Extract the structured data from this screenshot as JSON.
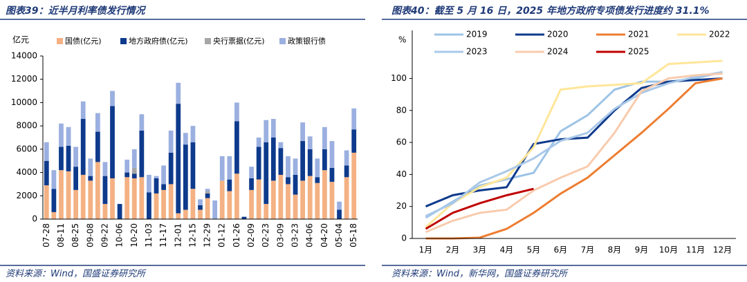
{
  "chart_data": [
    {
      "type": "bar",
      "stacked": true,
      "title": "图表39：近半月利率债发行情况",
      "source": "资料来源：Wind，国盛证券研究所",
      "y_label": "亿元",
      "legend": "top",
      "grid": false,
      "categories": [
        "07-28",
        null,
        "08-11",
        null,
        "08-25",
        null,
        "09-08",
        null,
        "09-22",
        null,
        "10-06",
        null,
        "10-20",
        null,
        "11-03",
        null,
        "11-17",
        null,
        "12-01",
        null,
        "12-15",
        null,
        "12-29",
        null,
        "01-12",
        null,
        "01-26",
        null,
        "02-09",
        null,
        "02-23",
        null,
        "03-09",
        null,
        "03-23",
        null,
        "04-06",
        null,
        "04-20",
        null,
        "05-04",
        null,
        "05-18"
      ],
      "ylim": [
        0,
        14000
      ],
      "yticks": [
        0,
        2000,
        4000,
        6000,
        8000,
        10000,
        12000,
        14000
      ],
      "series": [
        {
          "name": "国债(亿元)",
          "color": "#f4b183",
          "values": [
            2900,
            600,
            4200,
            4100,
            2500,
            3800,
            3300,
            4900,
            1300,
            3500,
            0,
            3600,
            3500,
            3600,
            0,
            2200,
            2500,
            3000,
            500,
            800,
            2600,
            800,
            1800,
            0,
            3300,
            2400,
            3900,
            0,
            2500,
            3400,
            1300,
            3300,
            3800,
            3000,
            2100,
            3300,
            3700,
            3100,
            4200,
            3200,
            0,
            3600,
            5700
          ]
        },
        {
          "name": "地方政府债(亿元)",
          "color": "#0e3a8c",
          "values": [
            2100,
            2000,
            2000,
            2200,
            2000,
            4800,
            400,
            2600,
            2400,
            6200,
            1300,
            400,
            400,
            4000,
            2300,
            1300,
            500,
            2700,
            9400,
            5600,
            4000,
            400,
            400,
            0,
            0,
            1000,
            4500,
            200,
            1000,
            2800,
            5300,
            3700,
            2300,
            600,
            1700,
            3400,
            2300,
            500,
            1800,
            1200,
            800,
            1000,
            2000
          ]
        },
        {
          "name": "央行票据(亿元)",
          "color": "#a6a6a6",
          "values": [
            0,
            0,
            0,
            0,
            0,
            0,
            0,
            0,
            0,
            0,
            0,
            0,
            500,
            0,
            0,
            0,
            0,
            0,
            0,
            0,
            0,
            0,
            200,
            0,
            0,
            0,
            0,
            0,
            0,
            0,
            0,
            0,
            0,
            0,
            0,
            0,
            0,
            0,
            0,
            0,
            0,
            0,
            0
          ]
        },
        {
          "name": "政策银行债",
          "color": "#9bb0e0",
          "values": [
            1600,
            1600,
            2000,
            1600,
            1700,
            1500,
            1500,
            1600,
            1200,
            1300,
            0,
            1100,
            1600,
            1400,
            1500,
            200,
            1600,
            1900,
            1800,
            1000,
            1400,
            500,
            200,
            1600,
            2100,
            2000,
            1600,
            0,
            1000,
            800,
            1900,
            1600,
            500,
            1800,
            1400,
            1600,
            1100,
            1600,
            1900,
            2300,
            700,
            1300,
            1800
          ]
        }
      ]
    },
    {
      "type": "line",
      "title": "图表40：截至 5 月 16 日，2025 年地方政府专项债发行进度约 31.1%",
      "source": "资料来源：Wind，新华网，国盛证券研究所",
      "y_label": "%",
      "legend": "top",
      "grid": false,
      "categories": [
        "1月",
        "2月",
        "3月",
        "4月",
        "5月",
        "6月",
        "7月",
        "8月",
        "9月",
        "10月",
        "11月",
        "12月"
      ],
      "ylim": [
        0,
        130
      ],
      "yticks": [
        0,
        20,
        40,
        60,
        80,
        100
      ],
      "series": [
        {
          "name": "2019",
          "color": "#9dc3e6",
          "values": [
            13,
            23,
            33,
            37,
            41,
            67,
            77,
            93,
            98,
            98,
            100,
            104
          ]
        },
        {
          "name": "2020",
          "color": "#0e3a8c",
          "values": [
            20,
            27,
            30,
            32,
            59,
            62,
            63,
            80,
            94,
            98,
            99,
            100
          ]
        },
        {
          "name": "2021",
          "color": "#ed7d31",
          "values": [
            0,
            0,
            0.5,
            6,
            16,
            28,
            38,
            52,
            66,
            81,
            97,
            100
          ]
        },
        {
          "name": "2022",
          "color": "#ffe699",
          "values": [
            7,
            22,
            32,
            38,
            57,
            93,
            95,
            96,
            97,
            109,
            110,
            111
          ]
        },
        {
          "name": "2023",
          "color": "#a9c8e8",
          "values": [
            14,
            22,
            35,
            42,
            50,
            61,
            66,
            81,
            91,
            97,
            101,
            104
          ]
        },
        {
          "name": "2024",
          "color": "#f8cbad",
          "values": [
            4,
            11,
            16,
            18,
            30,
            38,
            45,
            66,
            92,
            100,
            102,
            103
          ]
        },
        {
          "name": "2025",
          "color": "#c00000",
          "values": [
            6,
            16,
            22,
            27,
            31,
            null,
            null,
            null,
            null,
            null,
            null,
            null
          ]
        }
      ]
    }
  ]
}
